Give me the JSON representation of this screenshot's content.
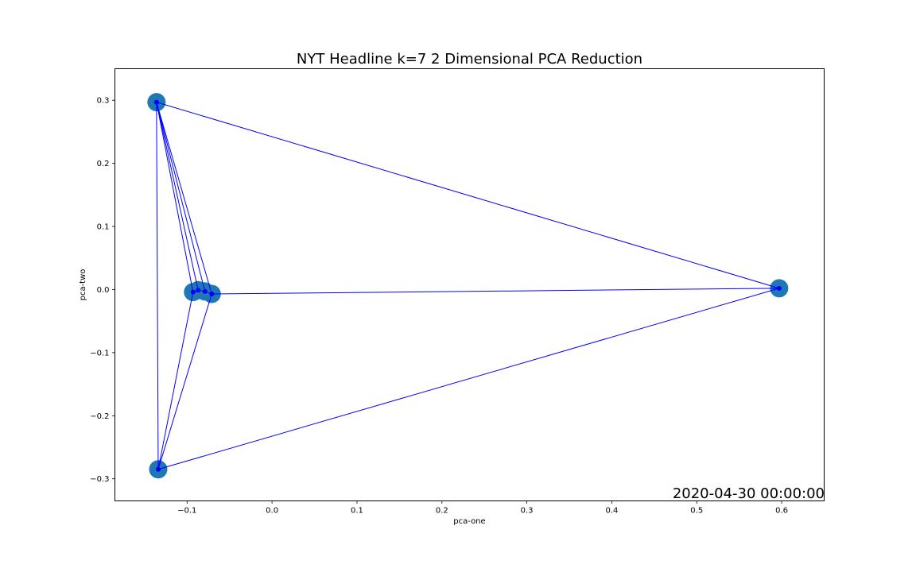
{
  "chart_data": {
    "type": "scatter",
    "title": "NYT Headline k=7 2 Dimensional PCA Reduction",
    "xlabel": "pca-one",
    "ylabel": "pca-two",
    "xlim": [
      -0.185,
      0.65
    ],
    "ylim": [
      -0.335,
      0.35
    ],
    "xticks": [
      -0.1,
      0.0,
      0.1,
      0.2,
      0.3,
      0.4,
      0.5,
      0.6
    ],
    "xtick_labels": [
      "−0.1",
      "0.0",
      "0.1",
      "0.2",
      "0.3",
      "0.4",
      "0.5",
      "0.6"
    ],
    "yticks": [
      -0.3,
      -0.2,
      -0.1,
      0.0,
      0.1,
      0.2,
      0.3
    ],
    "ytick_labels": [
      "−0.3",
      "−0.2",
      "−0.1",
      "0.0",
      "0.1",
      "0.2",
      "0.3"
    ],
    "grid": false,
    "annotation": "2020-04-30 00:00:00",
    "points": [
      {
        "x": -0.136,
        "y": 0.297
      },
      {
        "x": 0.597,
        "y": 0.002
      },
      {
        "x": -0.134,
        "y": -0.285
      },
      {
        "x": -0.093,
        "y": -0.004
      },
      {
        "x": -0.087,
        "y": -0.001
      },
      {
        "x": -0.079,
        "y": -0.003
      },
      {
        "x": -0.071,
        "y": -0.007
      }
    ],
    "edges": [
      [
        0,
        1
      ],
      [
        0,
        2
      ],
      [
        0,
        3
      ],
      [
        0,
        4
      ],
      [
        0,
        5
      ],
      [
        0,
        6
      ],
      [
        1,
        2
      ],
      [
        1,
        6
      ],
      [
        2,
        3
      ],
      [
        2,
        6
      ],
      [
        3,
        4
      ],
      [
        4,
        5
      ],
      [
        5,
        6
      ]
    ],
    "colors": {
      "marker_large": "#1f77b4",
      "marker_small": "#0000ff",
      "edge": "#0000ff",
      "axes": "#000000"
    }
  }
}
